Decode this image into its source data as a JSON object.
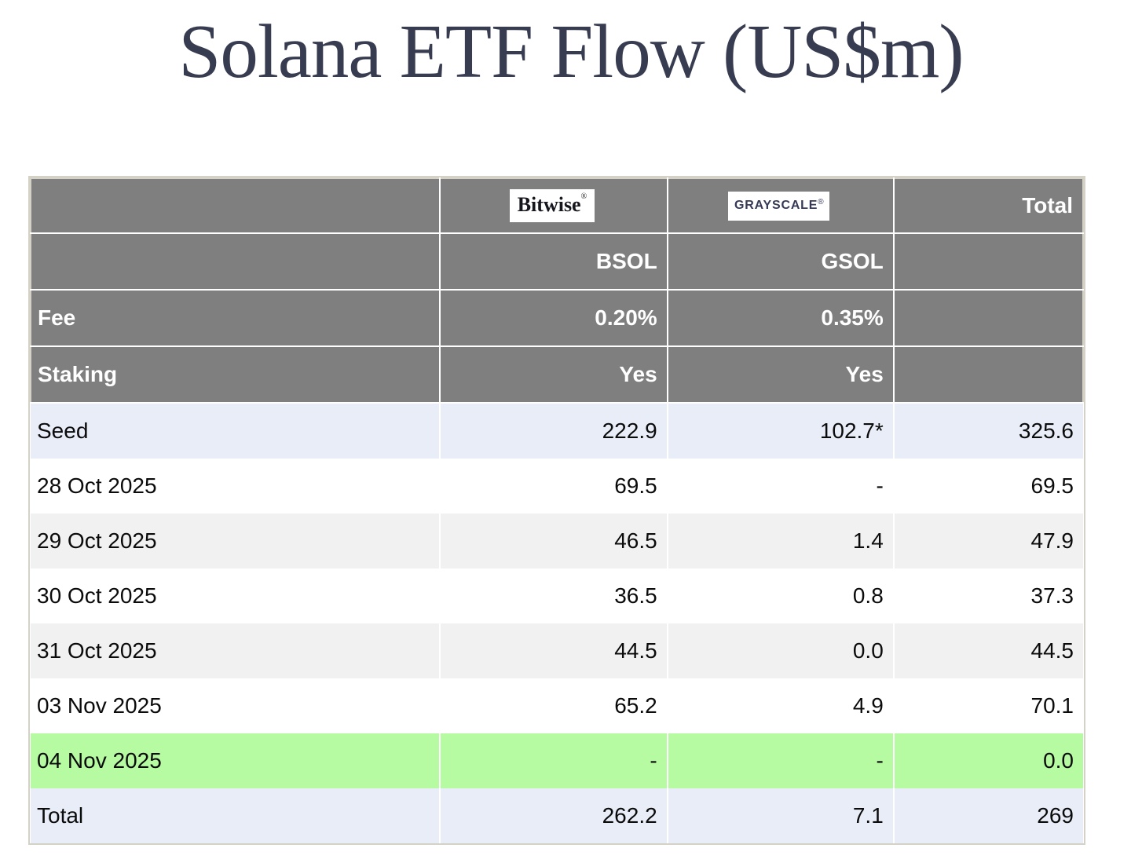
{
  "page": {
    "title": "Solana ETF Flow (US$m)"
  },
  "colors": {
    "title_text": "#383c51",
    "header_bg": "#7f7f7f",
    "header_text": "#ffffff",
    "row_highlight_blue": "#e9edf8",
    "row_alt_gray": "#f1f1f1",
    "row_highlight_green": "#b6faa2",
    "grayscale_logo_text": "#363a55"
  },
  "chart_data": {
    "type": "table",
    "title": "Solana ETF Flow (US$m)",
    "columns": [
      "",
      "Bitwise BSOL",
      "Grayscale GSOL",
      "Total"
    ],
    "labels": {
      "fee": "Fee",
      "staking": "Staking",
      "total": "Total"
    },
    "providers": [
      {
        "name": "Bitwise",
        "mark": "®",
        "ticker": "BSOL",
        "fee": "0.20%",
        "staking": "Yes"
      },
      {
        "name": "GRAYSCALE",
        "mark": "®",
        "ticker": "GSOL",
        "fee": "0.35%",
        "staking": "Yes"
      }
    ],
    "rows": [
      {
        "label": "Seed",
        "bsol": "222.9",
        "gsol": "102.7*",
        "total": "325.6",
        "highlight": "blue"
      },
      {
        "label": "28 Oct 2025",
        "bsol": "69.5",
        "gsol": "-",
        "total": "69.5",
        "highlight": "white"
      },
      {
        "label": "29 Oct 2025",
        "bsol": "46.5",
        "gsol": "1.4",
        "total": "47.9",
        "highlight": "gray"
      },
      {
        "label": "30 Oct 2025",
        "bsol": "36.5",
        "gsol": "0.8",
        "total": "37.3",
        "highlight": "white"
      },
      {
        "label": "31 Oct 2025",
        "bsol": "44.5",
        "gsol": "0.0",
        "total": "44.5",
        "highlight": "gray"
      },
      {
        "label": "03 Nov 2025",
        "bsol": "65.2",
        "gsol": "4.9",
        "total": "70.1",
        "highlight": "white"
      },
      {
        "label": "04 Nov 2025",
        "bsol": "-",
        "gsol": "-",
        "total": "0.0",
        "highlight": "green"
      },
      {
        "label": "Total",
        "bsol": "262.2",
        "gsol": "7.1",
        "total": "269",
        "highlight": "blue"
      }
    ]
  }
}
